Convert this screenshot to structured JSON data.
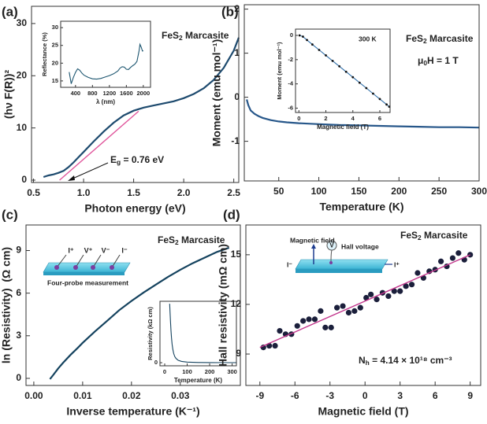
{
  "chart_data": [
    {
      "type": "line",
      "label": "(a)",
      "xlabel": "Photon energy (eV)",
      "ylabel": "(hν F(R))²",
      "xlim": [
        0.48,
        2.55
      ],
      "ylim": [
        -0.45,
        33.3
      ],
      "xticks": [
        0.5,
        {
          "value": 1,
          "label": "1.0"
        },
        1.5,
        {
          "value": 2,
          "label": "2.0"
        },
        2.5
      ],
      "yticks": [
        0,
        10,
        20,
        30
      ],
      "annotations": [
        [
          "FeS",
          {
            "sub": "2"
          },
          " Marcasite"
        ],
        [
          "E",
          {
            "sub": "g"
          },
          " = 0.76 eV"
        ]
      ],
      "series": [
        {
          "mode": "line",
          "color": "#1d4a6e",
          "x": [
            0.6,
            0.65,
            0.7,
            0.75,
            0.8,
            0.85,
            0.9,
            0.95,
            1.0,
            1.1,
            1.2,
            1.3,
            1.4,
            1.5,
            1.6,
            1.7,
            1.8,
            1.9,
            2.0,
            2.1,
            2.2,
            2.3,
            2.4,
            2.5,
            2.55
          ],
          "values": [
            0.6,
            0.9,
            1.1,
            1.4,
            1.8,
            2.5,
            3.4,
            4.4,
            5.4,
            7.4,
            9.3,
            11.0,
            12.4,
            13.3,
            13.9,
            14.3,
            14.7,
            15.1,
            15.7,
            16.5,
            17.6,
            19.2,
            21.5,
            24.8,
            27.3
          ]
        },
        {
          "mode": "line",
          "color": "#e0559b",
          "x": [
            0.76,
            1.55
          ],
          "values": [
            0,
            13.2
          ]
        }
      ]
    },
    {
      "type": "line",
      "xlabel": "λ (nm)",
      "ylabel": "Reflectance (%)",
      "xlim": [
        50,
        2170
      ],
      "ylim": [
        13.2,
        31.8
      ],
      "xticks": [
        400,
        800,
        1200,
        1600,
        2000
      ],
      "yticks": [
        15,
        20,
        25,
        30
      ],
      "series": [
        {
          "mode": "line",
          "color": "#1d5670",
          "x": [
            250,
            300,
            350,
            400,
            450,
            500,
            550,
            600,
            700,
            800,
            900,
            1000,
            1100,
            1200,
            1300,
            1400,
            1450,
            1500,
            1550,
            1600,
            1650,
            1700,
            1750,
            1800,
            1850,
            1900,
            1920,
            1950,
            1980,
            2000
          ],
          "values": [
            17.5,
            14.2,
            16.0,
            17.4,
            18.4,
            18.0,
            17.2,
            16.6,
            16.0,
            15.6,
            15.5,
            15.7,
            16.1,
            16.5,
            17.0,
            17.8,
            18.6,
            19.0,
            18.9,
            18.3,
            18.2,
            18.8,
            19.3,
            19.7,
            20.5,
            23.5,
            25.3,
            24.5,
            23.4,
            23.5
          ]
        }
      ]
    },
    {
      "type": "line",
      "label": "(b)",
      "xlabel": "Temperature (K)",
      "ylabel": "Moment (emu mol⁻¹)",
      "xlim": [
        7,
        300
      ],
      "ylim": [
        -1.9,
        2.1
      ],
      "xticks": [
        50,
        100,
        150,
        200,
        250,
        300
      ],
      "yticks": [
        -1,
        0,
        1,
        2
      ],
      "annotations": [
        [
          "FeS",
          {
            "sub": "2"
          },
          " Marcasite"
        ],
        [
          "μ",
          {
            "sub": "0"
          },
          "H = 1 T"
        ]
      ],
      "series": [
        {
          "mode": "line",
          "color": "#27578a",
          "x": [
            10,
            12,
            15,
            20,
            25,
            30,
            40,
            50,
            60,
            75,
            100,
            125,
            150,
            175,
            200,
            225,
            250,
            275,
            300
          ],
          "values": [
            -0.05,
            -0.18,
            -0.3,
            -0.38,
            -0.43,
            -0.47,
            -0.52,
            -0.55,
            -0.57,
            -0.59,
            -0.61,
            -0.63,
            -0.64,
            -0.65,
            -0.66,
            -0.67,
            -0.68,
            -0.68,
            -0.69
          ]
        }
      ]
    },
    {
      "type": "line",
      "xlabel": "Magnetic field (T)",
      "ylabel": "Moment (emu mol⁻¹)",
      "xlim": [
        -0.25,
        6.76
      ],
      "ylim": [
        -6.36,
        0.52
      ],
      "xticks": [
        0,
        2,
        4,
        6
      ],
      "yticks": [
        -6,
        -4,
        -2,
        0
      ],
      "annotations": [
        "300 K"
      ],
      "series": [
        {
          "mode": "lines+markers",
          "color": "#2f6ea8",
          "x": [
            0.05,
            0.3,
            0.6,
            1,
            1.5,
            2,
            2.5,
            3,
            3.5,
            4,
            4.5,
            5,
            5.5,
            6,
            6.5,
            6.7
          ],
          "values": [
            0.0,
            -0.1,
            -0.38,
            -0.75,
            -1.2,
            -1.65,
            -2.1,
            -2.55,
            -3.0,
            -3.45,
            -3.9,
            -4.35,
            -4.8,
            -5.25,
            -5.7,
            -5.88
          ]
        }
      ]
    },
    {
      "type": "line",
      "label": "(c)",
      "xlabel": "Inverse temperature (K⁻¹)",
      "ylabel": "ln (Resistivity)  (Ω cm)",
      "xlim": [
        -0.0016,
        0.0423
      ],
      "ylim": [
        -0.5,
        10.8
      ],
      "xticks": [
        {
          "value": 0,
          "label": "0.00"
        },
        0.01,
        0.02,
        0.03
      ],
      "yticks": [
        0,
        3,
        6,
        9
      ],
      "annotations": [
        [
          "FeS",
          {
            "sub": "2"
          },
          " Marcasite"
        ]
      ],
      "series": [
        {
          "mode": "line",
          "color": "#14425e",
          "x": [
            0.0033,
            0.004,
            0.005,
            0.006,
            0.0075,
            0.009,
            0.01,
            0.0125,
            0.015,
            0.0175,
            0.02,
            0.0225,
            0.025,
            0.0275,
            0.03,
            0.0325,
            0.035,
            0.0375,
            0.04
          ],
          "values": [
            -0.05,
            0.25,
            0.7,
            1.1,
            1.65,
            2.15,
            2.5,
            3.3,
            4.05,
            4.8,
            5.45,
            6.05,
            6.6,
            7.15,
            7.65,
            8.1,
            8.5,
            8.9,
            9.2
          ]
        }
      ]
    },
    {
      "type": "line",
      "xlabel": "Temperature (K)",
      "ylabel": "Resistivity (kΩ cm)",
      "xlim": [
        -21,
        319
      ],
      "ylim": [
        -0.5,
        10
      ],
      "xticks": [
        0,
        100,
        200,
        300
      ],
      "yticks": [
        0
      ],
      "series": [
        {
          "mode": "line",
          "color": "#14425e",
          "x": [
            22,
            24,
            26,
            28,
            30,
            33,
            36,
            40,
            45,
            50,
            60,
            75,
            100,
            150,
            200,
            250,
            300,
            320
          ],
          "values": [
            9.6,
            8.2,
            6.6,
            5.2,
            4.1,
            3.0,
            2.2,
            1.5,
            1.0,
            0.7,
            0.4,
            0.22,
            0.1,
            0.04,
            0.02,
            0.01,
            0.01,
            0.01
          ]
        }
      ]
    },
    {
      "type": "scatter",
      "label": "(d)",
      "xlabel": "Magnetic field (T)",
      "ylabel": "Hall resistivity (mΩ cm)",
      "xlim": [
        -10.2,
        9.9
      ],
      "ylim": [
        7.1,
        16.8
      ],
      "xticks": [
        -9,
        -6,
        -3,
        0,
        3,
        6,
        9
      ],
      "yticks": [
        9,
        12,
        15
      ],
      "annotations": [
        [
          "FeS",
          {
            "sub": "2"
          },
          " Marcasite"
        ],
        [
          "N",
          {
            "sub": "h"
          },
          " = 4.14 × 10¹⁸ cm⁻³"
        ]
      ],
      "series": [
        {
          "mode": "markers",
          "color": "#1b1f3b",
          "x": [
            -8.7,
            -8.2,
            -7.7,
            -7.3,
            -6.8,
            -6.3,
            -5.8,
            -5.3,
            -4.8,
            -4.3,
            -3.8,
            -3.4,
            -2.9,
            -2.4,
            -1.9,
            -1.4,
            -0.9,
            -0.4,
            0.1,
            0.5,
            1,
            1.5,
            2,
            2.5,
            3,
            3.5,
            4,
            4.5,
            5,
            5.5,
            6,
            6.5,
            7,
            7.5,
            8,
            8.5,
            9
          ],
          "values": [
            9.4,
            9.5,
            9.5,
            10.4,
            10.2,
            10.2,
            10.7,
            11.0,
            11.1,
            11.1,
            11.6,
            10.6,
            10.6,
            11.8,
            11.9,
            11.5,
            11.6,
            11.8,
            12.4,
            12.6,
            12.3,
            12.7,
            12.5,
            12.8,
            12.8,
            13.1,
            13.2,
            13.9,
            13.6,
            14.0,
            14.1,
            14.6,
            14.3,
            14.8,
            15.1,
            14.7,
            15.0
          ]
        },
        {
          "mode": "line",
          "color": "#c2358c",
          "x": [
            -9,
            9
          ],
          "values": [
            9.4,
            15.0
          ]
        }
      ]
    }
  ],
  "diagrams": {
    "four_probe": {
      "probes": [
        "I⁺",
        "V⁺",
        "V⁻",
        "I⁻"
      ],
      "caption": "Four-probe measurement"
    },
    "hall": {
      "field": "Magnetic field",
      "voltmeter": "V",
      "voltage": "Hall voltage",
      "current_in": "I⁻",
      "current_out": "I⁺"
    }
  }
}
